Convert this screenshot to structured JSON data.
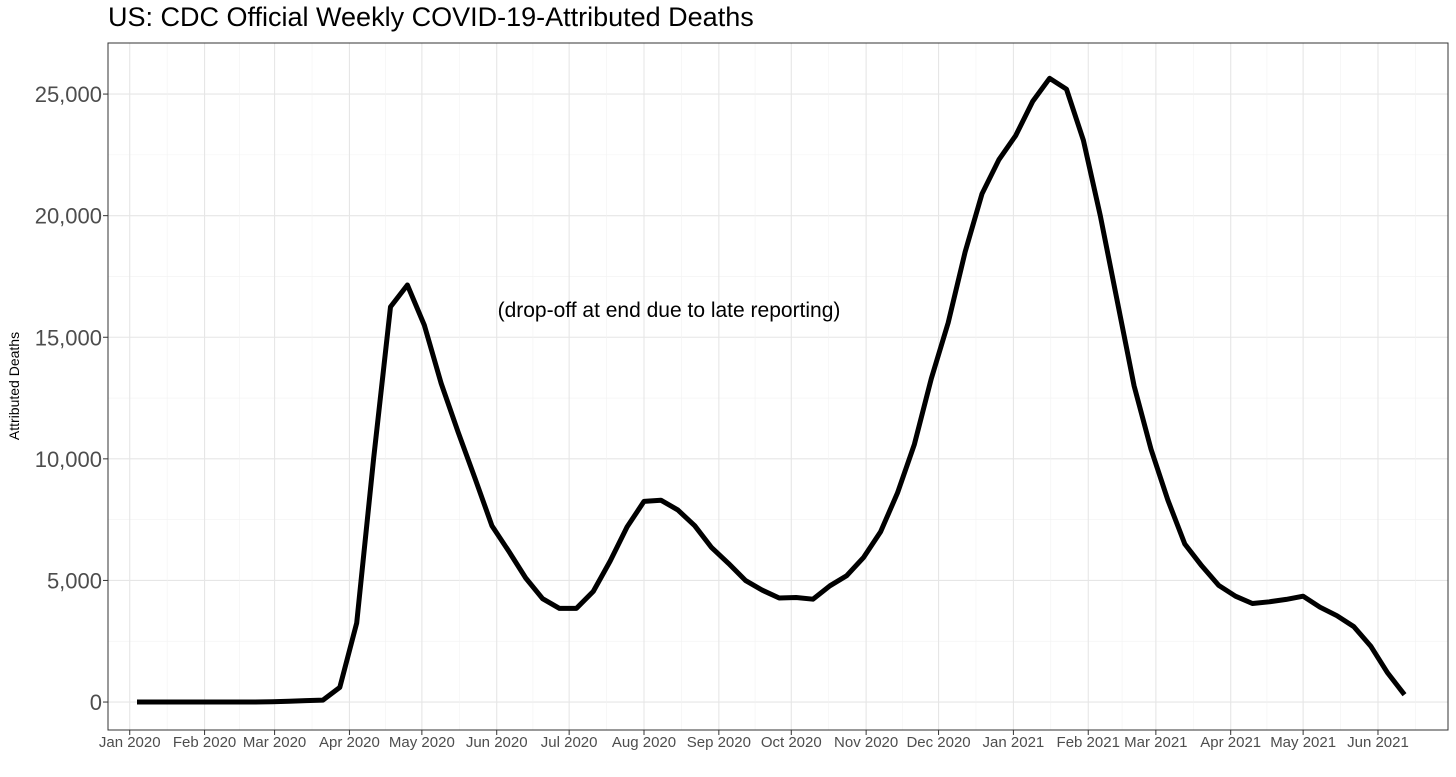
{
  "chart_data": {
    "type": "line",
    "title": "US: CDC Official Weekly COVID-19-Attributed Deaths",
    "xlabel": "",
    "ylabel": "Attributed Deaths",
    "annotation": "(drop-off at end due to late reporting)",
    "ylim": [
      -1150,
      27100
    ],
    "xlim": [
      "2019-12-23",
      "2021-06-30"
    ],
    "y_ticks": [
      0,
      5000,
      10000,
      15000,
      20000,
      25000
    ],
    "y_tick_labels": [
      "0",
      "5,000",
      "10,000",
      "15,000",
      "20,000",
      "25,000"
    ],
    "x_ticks": [
      "2020-01-01",
      "2020-02-01",
      "2020-03-01",
      "2020-04-01",
      "2020-05-01",
      "2020-06-01",
      "2020-07-01",
      "2020-08-01",
      "2020-09-01",
      "2020-10-01",
      "2020-11-01",
      "2020-12-01",
      "2021-01-01",
      "2021-02-01",
      "2021-03-01",
      "2021-04-01",
      "2021-05-01",
      "2021-06-01"
    ],
    "x_tick_labels": [
      "Jan 2020",
      "Feb 2020",
      "Mar 2020",
      "Apr 2020",
      "May 2020",
      "Jun 2020",
      "Jul 2020",
      "Aug 2020",
      "Sep 2020",
      "Oct 2020",
      "Nov 2020",
      "Dec 2020",
      "Jan 2021",
      "Feb 2021",
      "Mar 2021",
      "Apr 2021",
      "May 2021",
      "Jun 2021"
    ],
    "grid": true,
    "line_color": "#000000",
    "series": [
      {
        "x": [
          "2020-01-04",
          "2020-01-11",
          "2020-01-18",
          "2020-01-25",
          "2020-02-01",
          "2020-02-08",
          "2020-02-15",
          "2020-02-22",
          "2020-02-29",
          "2020-03-07",
          "2020-03-14",
          "2020-03-21",
          "2020-03-28",
          "2020-04-04",
          "2020-04-11",
          "2020-04-18",
          "2020-04-25",
          "2020-05-02",
          "2020-05-09",
          "2020-05-16",
          "2020-05-23",
          "2020-05-30",
          "2020-06-06",
          "2020-06-13",
          "2020-06-20",
          "2020-06-27",
          "2020-07-04",
          "2020-07-11",
          "2020-07-18",
          "2020-07-25",
          "2020-08-01",
          "2020-08-08",
          "2020-08-15",
          "2020-08-22",
          "2020-08-29",
          "2020-09-05",
          "2020-09-12",
          "2020-09-19",
          "2020-09-26",
          "2020-10-03",
          "2020-10-10",
          "2020-10-17",
          "2020-10-24",
          "2020-10-31",
          "2020-11-07",
          "2020-11-14",
          "2020-11-21",
          "2020-11-28",
          "2020-12-05",
          "2020-12-12",
          "2020-12-19",
          "2020-12-26",
          "2021-01-02",
          "2021-01-09",
          "2021-01-16",
          "2021-01-23",
          "2021-01-30",
          "2021-02-06",
          "2021-02-13",
          "2021-02-20",
          "2021-02-27",
          "2021-03-06",
          "2021-03-13",
          "2021-03-20",
          "2021-03-27",
          "2021-04-03",
          "2021-04-10",
          "2021-04-17",
          "2021-04-24",
          "2021-05-01",
          "2021-05-08",
          "2021-05-15",
          "2021-05-22",
          "2021-05-29",
          "2021-06-05",
          "2021-06-12"
        ],
        "values": [
          0,
          0,
          0,
          0,
          0,
          0,
          0,
          0,
          10,
          30,
          60,
          80,
          600,
          3250,
          10000,
          16250,
          17150,
          15500,
          13100,
          11100,
          9200,
          7250,
          6200,
          5100,
          4250,
          3850,
          3850,
          4550,
          5800,
          7200,
          8250,
          8300,
          7900,
          7250,
          6350,
          5700,
          5000,
          4600,
          4280,
          4300,
          4230,
          4780,
          5200,
          5950,
          7000,
          8600,
          10600,
          13300,
          15600,
          18500,
          20900,
          22300,
          23300,
          24700,
          25650,
          25200,
          23100,
          20000,
          16500,
          13000,
          10400,
          8300,
          6500,
          5600,
          4800,
          4350,
          4050,
          4120,
          4220,
          4350,
          3900,
          3550,
          3100,
          2300,
          1200,
          300
        ]
      }
    ]
  }
}
